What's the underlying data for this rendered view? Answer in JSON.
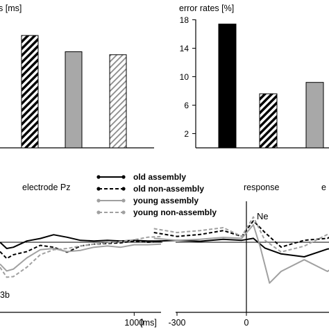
{
  "chart_data": [
    {
      "type": "bar",
      "title": "",
      "ylabel_visible": "s [ms]",
      "categories": [
        "",
        "",
        "",
        ""
      ],
      "values": [
        null,
        152,
        130,
        126
      ],
      "styles": [
        "black",
        "hatch-black",
        "gray",
        "hatch-light"
      ],
      "ylim": [
        0,
        200
      ],
      "note": "left panel cropped; leftmost bar not visible"
    },
    {
      "type": "bar",
      "title": "",
      "ylabel": "error rates [%]",
      "yticks": [
        "2",
        "6",
        "10",
        "14",
        "18"
      ],
      "ytick_values": [
        2,
        6,
        10,
        14,
        18
      ],
      "ylim": [
        0,
        20
      ],
      "categories": [
        "",
        "",
        "",
        ""
      ],
      "values": [
        17.4,
        7.6,
        9.2,
        null
      ],
      "styles": [
        "black",
        "hatch-black",
        "gray",
        "hatch-light"
      ]
    },
    {
      "type": "line",
      "panel_label": "electrode Pz",
      "corner_label": "3b",
      "xlabel": "[ms]",
      "xticks": [
        "1000"
      ],
      "xtick_values": [
        1000
      ],
      "xlim": [
        0,
        1200
      ],
      "series": [
        {
          "name": "old assembly",
          "color": "#000000",
          "dash": "solid",
          "x": [
            0,
            50,
            100,
            200,
            300,
            400,
            500,
            600,
            700,
            800,
            900,
            1000,
            1100,
            1200
          ],
          "y": [
            0.0,
            -1.0,
            -0.8,
            0.2,
            0.6,
            1.2,
            0.8,
            0.3,
            0.2,
            0.3,
            0.2,
            0.3,
            0.2,
            0.2
          ]
        },
        {
          "name": "old non-assembly",
          "color": "#000000",
          "dash": "dashed",
          "x": [
            0,
            50,
            100,
            200,
            300,
            400,
            500,
            600,
            700,
            800,
            900,
            1000,
            1100,
            1200
          ],
          "y": [
            -1.5,
            -2.6,
            -2.0,
            -1.5,
            -0.5,
            -0.8,
            -1.6,
            -0.6,
            -0.3,
            -0.2,
            -0.1,
            0.2,
            0.0,
            0.1
          ]
        },
        {
          "name": "young assembly",
          "color": "#a0a0a0",
          "dash": "solid",
          "x": [
            0,
            50,
            100,
            200,
            300,
            400,
            500,
            600,
            700,
            800,
            900,
            1000,
            1100,
            1200
          ],
          "y": [
            -3.5,
            -4.6,
            -4.3,
            -2.5,
            -1.2,
            -1.0,
            -1.5,
            -1.3,
            -0.8,
            -0.6,
            -0.8,
            -0.4,
            -0.4,
            -0.3
          ]
        },
        {
          "name": "young non-assembly",
          "color": "#a0a0a0",
          "dash": "dashed",
          "x": [
            0,
            50,
            100,
            200,
            300,
            400,
            500,
            600,
            700,
            800,
            900,
            1000,
            1100,
            1200
          ],
          "y": [
            -4.0,
            -5.6,
            -5.5,
            -4.0,
            -2.0,
            -1.2,
            -1.0,
            -0.6,
            -0.3,
            -0.1,
            0.1,
            0.4,
            0.8,
            0.9
          ]
        }
      ]
    },
    {
      "type": "line",
      "panel_label": "response",
      "panel_label_2": "e",
      "peak_label": "Ne",
      "xticks": [
        "-300",
        "0"
      ],
      "xtick_values": [
        -300,
        0
      ],
      "xlim": [
        -400,
        450
      ],
      "series": [
        {
          "name": "old assembly",
          "color": "#000000",
          "dash": "solid",
          "x": [
            -400,
            -300,
            -200,
            -100,
            -20,
            30,
            80,
            150,
            250,
            350,
            450
          ],
          "y": [
            0.1,
            0.2,
            0.1,
            0.3,
            0.2,
            0.4,
            -0.6,
            -1.2,
            -1.5,
            -0.7,
            -0.4
          ]
        },
        {
          "name": "old non-assembly",
          "color": "#000000",
          "dash": "dashed",
          "x": [
            -400,
            -300,
            -200,
            -100,
            -20,
            30,
            80,
            150,
            250,
            350,
            450
          ],
          "y": [
            1.0,
            0.6,
            0.8,
            1.2,
            0.6,
            2.2,
            1.0,
            -0.5,
            0.2,
            0.4,
            1.6
          ]
        },
        {
          "name": "young assembly",
          "color": "#a0a0a0",
          "dash": "solid",
          "x": [
            -400,
            -300,
            -200,
            -100,
            -20,
            30,
            60,
            100,
            150,
            250,
            350,
            450
          ],
          "y": [
            0.4,
            0.2,
            0.3,
            0.5,
            0.4,
            1.8,
            -0.5,
            -4.2,
            -3.0,
            -1.8,
            -3.0,
            -1.5
          ]
        },
        {
          "name": "young non-assembly",
          "color": "#a0a0a0",
          "dash": "dashed",
          "x": [
            -400,
            -300,
            -200,
            -100,
            -20,
            30,
            80,
            150,
            250,
            350,
            450
          ],
          "y": [
            1.4,
            1.0,
            1.2,
            1.5,
            0.6,
            2.6,
            0.2,
            -1.0,
            -0.4,
            0.8,
            1.2
          ]
        }
      ]
    }
  ],
  "legend": [
    {
      "label": "old assembly",
      "color": "#000000",
      "dash": "solid"
    },
    {
      "label": "old non-assembly",
      "color": "#000000",
      "dash": "dashed"
    },
    {
      "label": "young assembly",
      "color": "#a0a0a0",
      "dash": "solid"
    },
    {
      "label": "young non-assembly",
      "color": "#a0a0a0",
      "dash": "dashed"
    }
  ]
}
